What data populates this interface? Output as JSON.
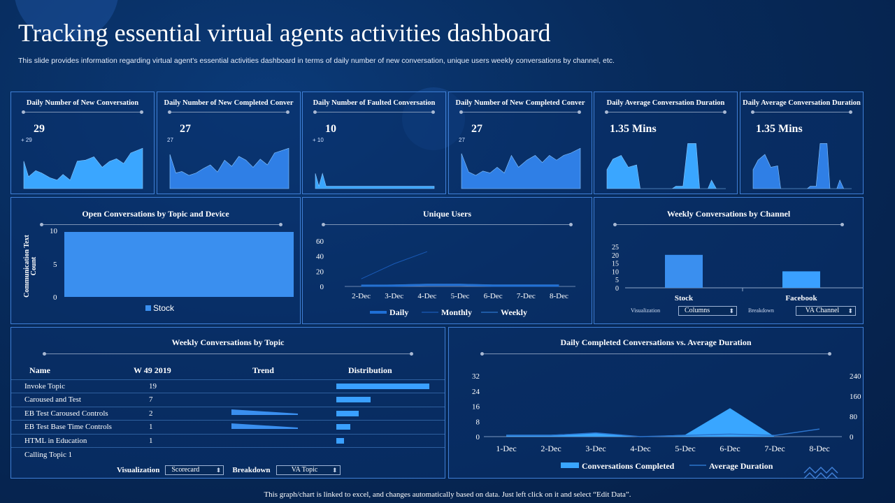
{
  "header": {
    "title": "Tracking essential virtual agents activities dashboard",
    "subtitle": "This slide provides information regarding virtual agent's essential activities dashboard in terms of daily number of new conversation, unique users weekly conversations by channel, etc."
  },
  "kpis": [
    {
      "title": "Daily Number of New Conversation",
      "value": "29",
      "sub": "+ 29"
    },
    {
      "title": "Daily Number of New Completed Conver",
      "value": "27",
      "sub": "27"
    },
    {
      "title": "Daily Number of Faulted Conversation",
      "value": "10",
      "sub": "+ 10"
    },
    {
      "title": "Daily Number of New Completed Conver",
      "value": "27",
      "sub": "27"
    },
    {
      "title": "Daily Average Conversation Duration",
      "value": "1.35 Mins",
      "sub": ""
    },
    {
      "title": "Daily Average Conversation Duration",
      "value": "1.35 Mins",
      "sub": ""
    }
  ],
  "open_conversations": {
    "title": "Open Conversations by Topic and Device",
    "ylabel": "Communication Text Count",
    "ticks": [
      "10",
      "5",
      "0"
    ],
    "legend": "Stock",
    "chart_data": {
      "type": "bar",
      "categories": [
        "Stock"
      ],
      "values": [
        10
      ],
      "ylim": [
        0,
        10
      ]
    }
  },
  "unique_users": {
    "title": "Unique Users",
    "yticks": [
      "60",
      "40",
      "20",
      "0"
    ],
    "legend": [
      "Daily",
      "Monthly",
      "Weekly"
    ],
    "chart_data": {
      "type": "line",
      "x": [
        "2-Dec",
        "3-Dec",
        "4-Dec",
        "5-Dec",
        "6-Dec",
        "7-Dec",
        "8-Dec"
      ],
      "ylim": [
        0,
        60
      ],
      "series": [
        {
          "name": "Daily",
          "values": [
            1,
            1,
            2,
            2,
            1,
            1,
            1
          ]
        },
        {
          "name": "Monthly",
          "values": [
            10,
            30,
            46,
            null,
            null,
            null,
            null
          ]
        },
        {
          "name": "Weekly",
          "values": [
            1,
            2,
            3,
            3,
            2,
            2,
            2
          ]
        }
      ]
    }
  },
  "weekly_channel": {
    "title": "Weekly Conversations by Channel",
    "yticks": [
      "25",
      "20",
      "15",
      "10",
      "5",
      "0"
    ],
    "viz_label": "Visualization",
    "viz_value": "Columns",
    "breakdown_label": "Breakdown",
    "breakdown_value": "VA Channel",
    "chart_data": {
      "type": "bar",
      "categories": [
        "Stock",
        "Facebook"
      ],
      "values": [
        20,
        10
      ],
      "ylim": [
        0,
        25
      ]
    }
  },
  "weekly_topic": {
    "title": "Weekly Conversations by Topic",
    "headers": [
      "Name",
      "W 49 2019",
      "Trend",
      "Distribution"
    ],
    "rows": [
      {
        "name": "Invoke Topic",
        "count": "19",
        "dist": 19
      },
      {
        "name": "Caroused and Test",
        "count": "7",
        "dist": 7
      },
      {
        "name": "EB Test Caroused Controls",
        "count": "2",
        "dist": 4.5
      },
      {
        "name": "EB Test Base Time Controls",
        "count": "1",
        "dist": 2.8
      },
      {
        "name": "HTML in Education",
        "count": "1",
        "dist": 1.5
      },
      {
        "name": "Calling Topic 1",
        "count": "",
        "dist": 0
      }
    ],
    "viz_label": "Visualization",
    "viz_value": "Scorecard",
    "breakdown_label": "Breakdown",
    "breakdown_value": "VA Topic"
  },
  "daily_completed": {
    "title": "Daily Completed Conversations vs. Average Duration",
    "yticks_left": [
      "32",
      "24",
      "16",
      "8",
      "0"
    ],
    "yticks_right": [
      "240",
      "160",
      "80",
      "0"
    ],
    "legend": [
      "Conversations Completed",
      "Average Duration"
    ],
    "chart_data": {
      "type": "area",
      "x": [
        "1-Dec",
        "2-Dec",
        "3-Dec",
        "4-Dec",
        "5-Dec",
        "6-Dec",
        "7-Dec",
        "8-Dec"
      ],
      "ylim": [
        0,
        32
      ],
      "y2lim": [
        0,
        240
      ],
      "series": [
        {
          "name": "Conversations Completed",
          "axis": "left",
          "values": [
            1,
            1,
            2,
            0,
            1,
            15,
            0,
            0
          ]
        },
        {
          "name": "Average Duration",
          "axis": "right",
          "values": [
            5,
            5,
            15,
            0,
            5,
            10,
            5,
            30
          ]
        }
      ]
    }
  },
  "footnote": "This graph/chart is linked to excel,  and changes automatically based on data. Just left click on it and select “Edit Data”.",
  "colors": {
    "panel_border": "#3f7fd6",
    "bar": "#3a8fef",
    "accent": "#3aa0ff",
    "area": "#2f7fe6",
    "area_light": "#39a6ff"
  }
}
